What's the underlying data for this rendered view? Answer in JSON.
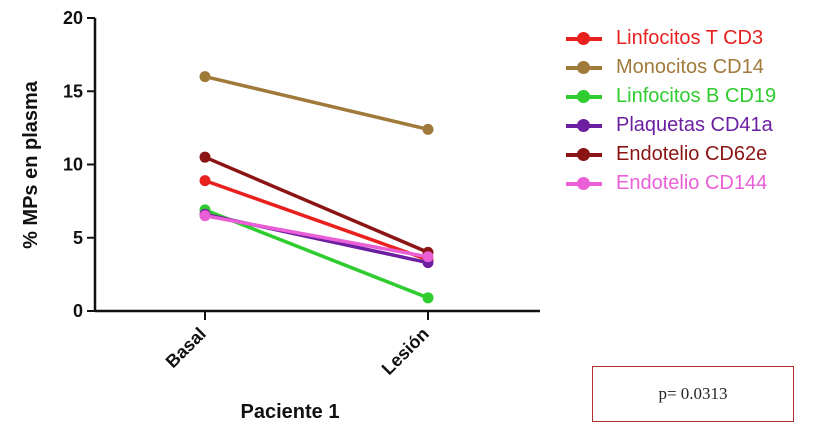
{
  "chart_data": {
    "type": "line",
    "title": "",
    "xlabel": "Paciente 1",
    "ylabel": "% MPs en plasma",
    "ylim": [
      0,
      20
    ],
    "yticks": [
      0,
      5,
      10,
      15,
      20
    ],
    "categories": [
      "Basal",
      "Lesión"
    ],
    "series": [
      {
        "name": "Linfocitos T CD3",
        "color": "#e8211f",
        "values": [
          8.9,
          3.5
        ]
      },
      {
        "name": "Monocitos CD14",
        "color": "#a07a3a",
        "values": [
          16.0,
          12.4
        ]
      },
      {
        "name": "Linfocitos B CD19",
        "color": "#2fcc2f",
        "values": [
          6.9,
          0.9
        ]
      },
      {
        "name": "Plaquetas CD41a",
        "color": "#6c1fa0",
        "values": [
          6.6,
          3.3
        ]
      },
      {
        "name": "Endotelio CD62e",
        "color": "#8b1414",
        "values": [
          10.5,
          4.0
        ]
      },
      {
        "name": "Endotelio CD144",
        "color": "#ea5fd6",
        "values": [
          6.5,
          3.7
        ]
      }
    ],
    "legend_position": "right",
    "grid": false
  },
  "annotation": {
    "pvalue": "p= 0.0313"
  }
}
